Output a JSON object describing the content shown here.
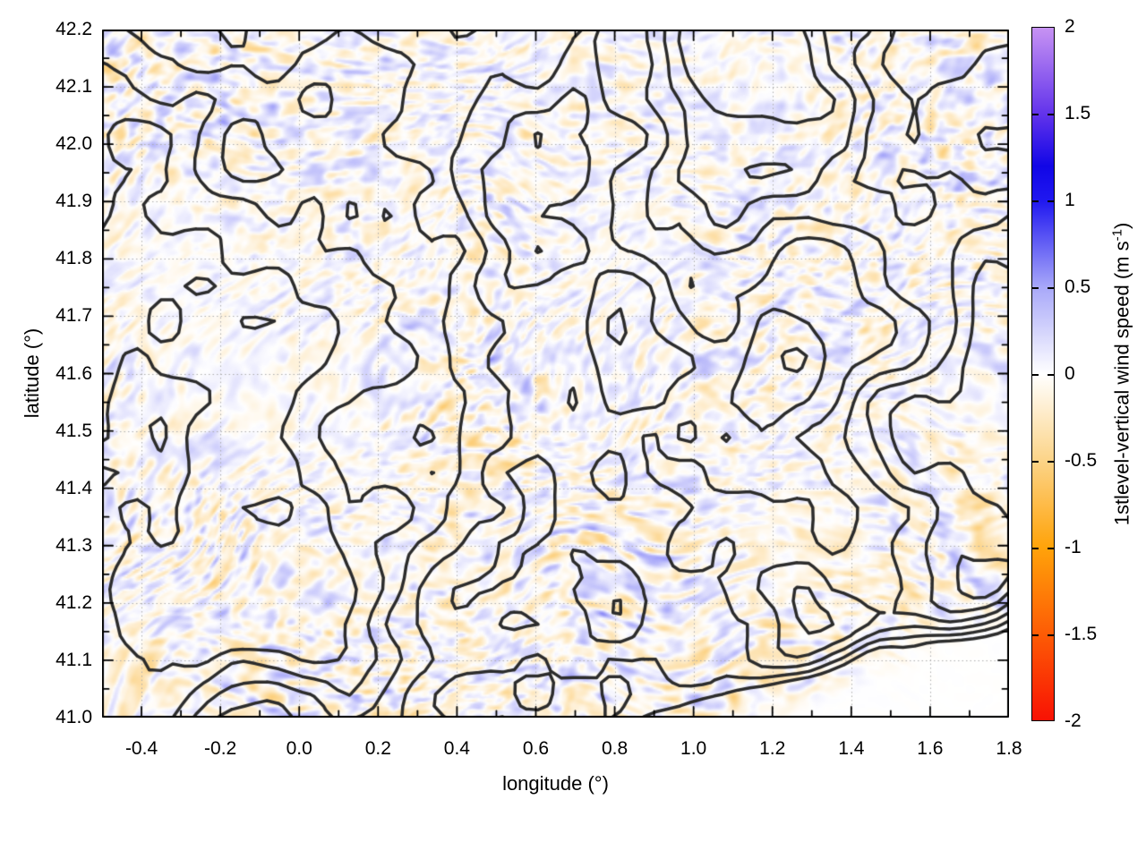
{
  "figure": {
    "background": "#ffffff",
    "plot": {
      "frame_color": "#000000",
      "grid": {
        "style": "dotted",
        "color": "#aeaeae"
      },
      "contour_color": "#2c2c2c",
      "x_axis": {
        "label": "longitude (°)",
        "min": -0.5,
        "max": 1.8,
        "tick_values": [
          -0.4,
          -0.2,
          0.0,
          0.2,
          0.4,
          0.6,
          0.8,
          1.0,
          1.2,
          1.4,
          1.6,
          1.8
        ],
        "tick_labels": [
          "-0.4",
          "-0.2",
          "0.0",
          "0.2",
          "0.4",
          "0.6",
          "0.8",
          "1.0",
          "1.2",
          "1.4",
          "1.6",
          "1.8"
        ],
        "minor_step": 0.1
      },
      "y_axis": {
        "label": "latitude (°)",
        "min": 41.0,
        "max": 42.2,
        "tick_values": [
          41.0,
          41.1,
          41.2,
          41.3,
          41.4,
          41.5,
          41.6,
          41.7,
          41.8,
          41.9,
          42.0,
          42.1,
          42.2
        ],
        "tick_labels": [
          "41.0",
          "41.1",
          "41.2",
          "41.3",
          "41.4",
          "41.5",
          "41.6",
          "41.7",
          "41.8",
          "41.9",
          "42.0",
          "42.1",
          "42.2"
        ],
        "minor_step": 0.05
      }
    },
    "colorbar": {
      "label_prefix": "1stlevel-vertical wind speed (m s",
      "label_sup": "-1",
      "label_suffix": ")",
      "min": -2,
      "max": 2,
      "tick_values": [
        2,
        1.5,
        1,
        0.5,
        0,
        -0.5,
        -1,
        -1.5,
        -2
      ],
      "tick_labels": [
        "2",
        "1.5",
        "1",
        "0.5",
        "0",
        "-0.5",
        "-1",
        "-1.5",
        "-2"
      ],
      "palette": [
        {
          "v": -2.0,
          "color": "#f81204"
        },
        {
          "v": -1.5,
          "color": "#fd5c05"
        },
        {
          "v": -1.0,
          "color": "#ffa30a"
        },
        {
          "v": -0.5,
          "color": "#fcd488"
        },
        {
          "v": 0.0,
          "color": "#ffffff"
        },
        {
          "v": 0.5,
          "color": "#a8a8f9"
        },
        {
          "v": 1.0,
          "color": "#2018f0"
        },
        {
          "v": 1.2,
          "color": "#1106e6"
        },
        {
          "v": 1.5,
          "color": "#6233eb"
        },
        {
          "v": 2.0,
          "color": "#c793f3"
        }
      ]
    }
  },
  "chart_data": {
    "type": "heatmap",
    "title": "",
    "xlabel": "longitude (°)",
    "ylabel": "latitude (°)",
    "xlim": [
      -0.5,
      1.8
    ],
    "ylim": [
      41.0,
      42.2
    ],
    "x_major_ticks": [
      -0.4,
      -0.2,
      0.0,
      0.2,
      0.4,
      0.6,
      0.8,
      1.0,
      1.2,
      1.4,
      1.6,
      1.8
    ],
    "x_minor_step": 0.1,
    "y_major_ticks": [
      41.0,
      41.1,
      41.2,
      41.3,
      41.4,
      41.5,
      41.6,
      41.7,
      41.8,
      41.9,
      42.0,
      42.1,
      42.2
    ],
    "y_minor_step": 0.05,
    "grid": "fine dotted gray lines at every labeled tick, drawn over the field",
    "colorbar": {
      "label": "1stlevel-vertical wind speed (m s-1)",
      "range": [
        -2,
        2
      ],
      "ticks": [
        2,
        1.5,
        1,
        0.5,
        0,
        -0.5,
        -1,
        -1.5,
        -2
      ],
      "scale": "diverging: red (-2) -> orange (-1) -> pale orange (-0.5) -> white (0) -> pale blue (0.5) -> deep blue (1) -> violet-blue (1.5) -> light violet (2)"
    },
    "field": "streaky speckled vertical wind speed field, values mostly within ±0.5 m/s; orange streaks = negative (downdraft), lavender-blue patches = positive (updraft); field is near zero (white) over the sea in the south-east corner",
    "overlay": "thick dark-gray terrain elevation contour lines at several levels; stair-stepped coastline contour bounding a clean white sea region in the bottom-right; mountainous clusters of nested contours in the north-east and south-central areas",
    "legend": "none"
  }
}
